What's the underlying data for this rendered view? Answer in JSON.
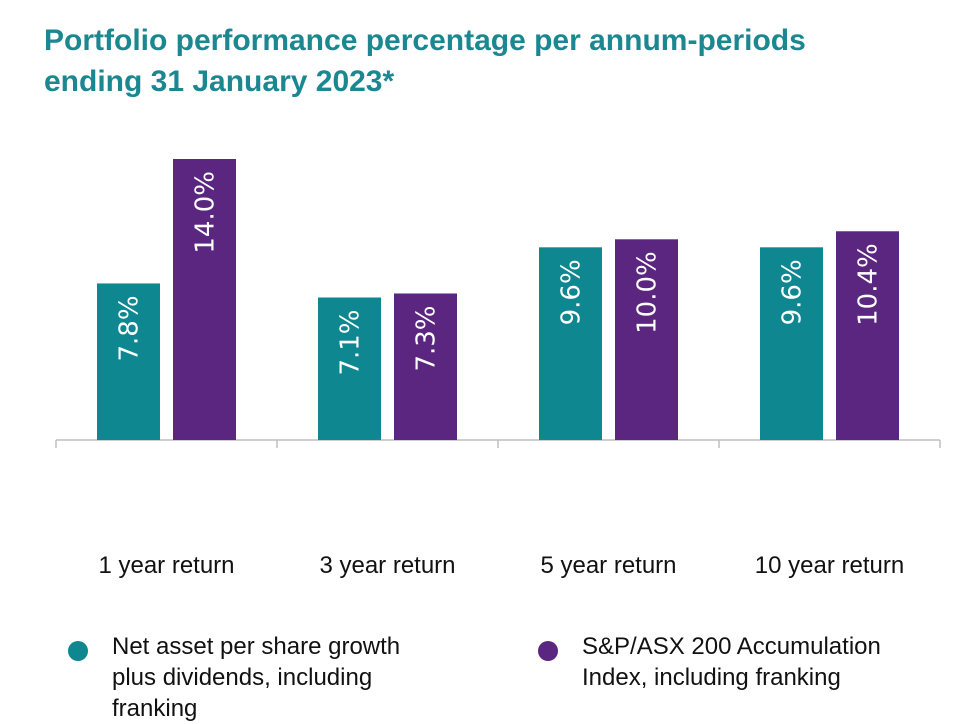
{
  "title": {
    "line1": "Portfolio performance percentage per annum-periods",
    "line2": "ending 31 January 2023*"
  },
  "colors": {
    "title": "#1a8791",
    "nav_series": "#0f8791",
    "index_series": "#5b2680",
    "axis": "#bfbfbf"
  },
  "chart_data": {
    "type": "bar",
    "title": "Portfolio performance percentage per annum-periods ending 31 January 2023*",
    "categories": [
      "1 year return",
      "3 year return",
      "5 year return",
      "10 year return"
    ],
    "series": [
      {
        "name": "Net asset per share growth plus dividends, including franking",
        "values": [
          7.8,
          7.1,
          9.6,
          9.6
        ],
        "labels": [
          "7.8%",
          "7.1%",
          "9.6%",
          "9.6%"
        ]
      },
      {
        "name": "S&P/ASX 200 Accumulation Index, including franking",
        "values": [
          14.0,
          7.3,
          10.0,
          10.4
        ],
        "labels": [
          "14.0%",
          "7.3%",
          "10.0%",
          "10.4%"
        ]
      }
    ],
    "ylim": [
      0,
      14
    ],
    "xlabel": "",
    "ylabel": "",
    "grid": false,
    "legend_position": "bottom"
  },
  "legend": {
    "nav_lines": [
      "Net asset per share growth",
      "plus dividends, including",
      "franking"
    ],
    "index_lines": [
      "S&P/ASX 200 Accumulation",
      "Index, including franking"
    ]
  }
}
